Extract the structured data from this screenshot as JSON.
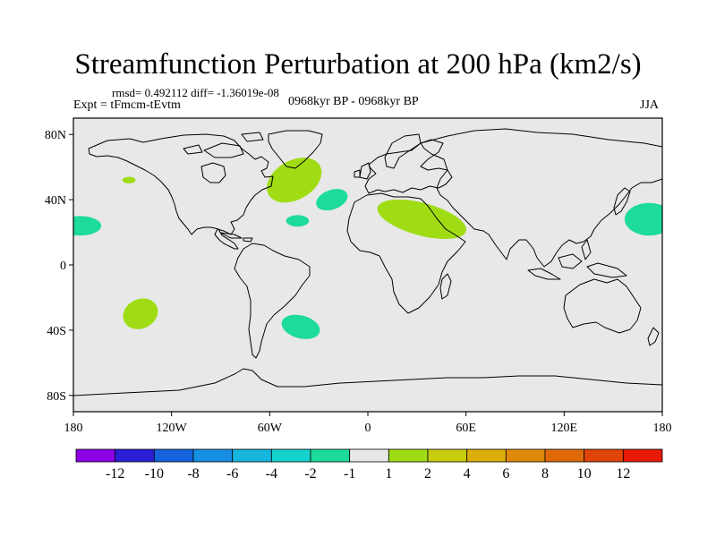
{
  "title": "Streamfunction Perturbation at 200 hPa (km2/s)",
  "stats": "rmsd= 0.492112 diff= -1.36019e-08",
  "expt": "Expt = tFmcm-tEvtm",
  "period": "0968kyr BP - 0968kyr BP",
  "season": "JJA",
  "map": {
    "lat_ticks": [
      "80N",
      "40N",
      "0",
      "40S",
      "80S"
    ],
    "lon_ticks": [
      "180",
      "120W",
      "60W",
      "0",
      "60E",
      "120E",
      "180"
    ]
  },
  "anomalies": [
    {
      "name": "north-atlantic-positive",
      "lon": -45,
      "lat": 52,
      "rlon": 18,
      "rlat": 12,
      "rot": -30,
      "value": 1
    },
    {
      "name": "hawaii-positive",
      "lon": -146,
      "lat": 52,
      "rlon": 4,
      "rlat": 2,
      "rot": 0,
      "value": 1
    },
    {
      "name": "mid-atlantic-negative",
      "lon": -22,
      "lat": 40,
      "rlon": 10,
      "rlat": 6,
      "rot": -20,
      "value": -1
    },
    {
      "name": "subtropical-atlantic-negative",
      "lon": -43,
      "lat": 27,
      "rlon": 7,
      "rlat": 3.5,
      "rot": 0,
      "value": -1
    },
    {
      "name": "east-pacific-negative",
      "lon": -176,
      "lat": 24,
      "rlon": 13,
      "rlat": 6,
      "rot": 0,
      "value": -1
    },
    {
      "name": "west-pacific-negative",
      "lon": 172,
      "lat": 28,
      "rlon": 15,
      "rlat": 10,
      "rot": 0,
      "value": -1
    },
    {
      "name": "south-pacific-positive",
      "lon": -139,
      "lat": -30,
      "rlon": 11,
      "rlat": 9,
      "rot": -25,
      "value": 1
    },
    {
      "name": "south-atlantic-negative",
      "lon": -41,
      "lat": -38,
      "rlon": 12,
      "rlat": 7,
      "rot": 15,
      "value": -1
    },
    {
      "name": "middle-east-positive",
      "lon": 33,
      "lat": 28,
      "rlon": 28,
      "rlat": 10,
      "rot": 15,
      "value": 1
    }
  ],
  "colorbar": {
    "colors": [
      "#8c00e6",
      "#2a1fd6",
      "#1463dc",
      "#168ee2",
      "#16b5dc",
      "#16d2cc",
      "#1ddc9a",
      "#e8e8e8",
      "#a0dc14",
      "#c8cc0e",
      "#dcac08",
      "#de8a08",
      "#e06a08",
      "#e04408",
      "#e81a08"
    ],
    "labels": [
      "-12",
      "-10",
      "-8",
      "-6",
      "-4",
      "-2",
      "-1",
      "1",
      "2",
      "4",
      "6",
      "8",
      "10",
      "12"
    ],
    "positive_color": "#a0dc14",
    "negative_color": "#1ddc9a",
    "background_color": "#e8e8e8"
  },
  "coastline_color": "#000000"
}
